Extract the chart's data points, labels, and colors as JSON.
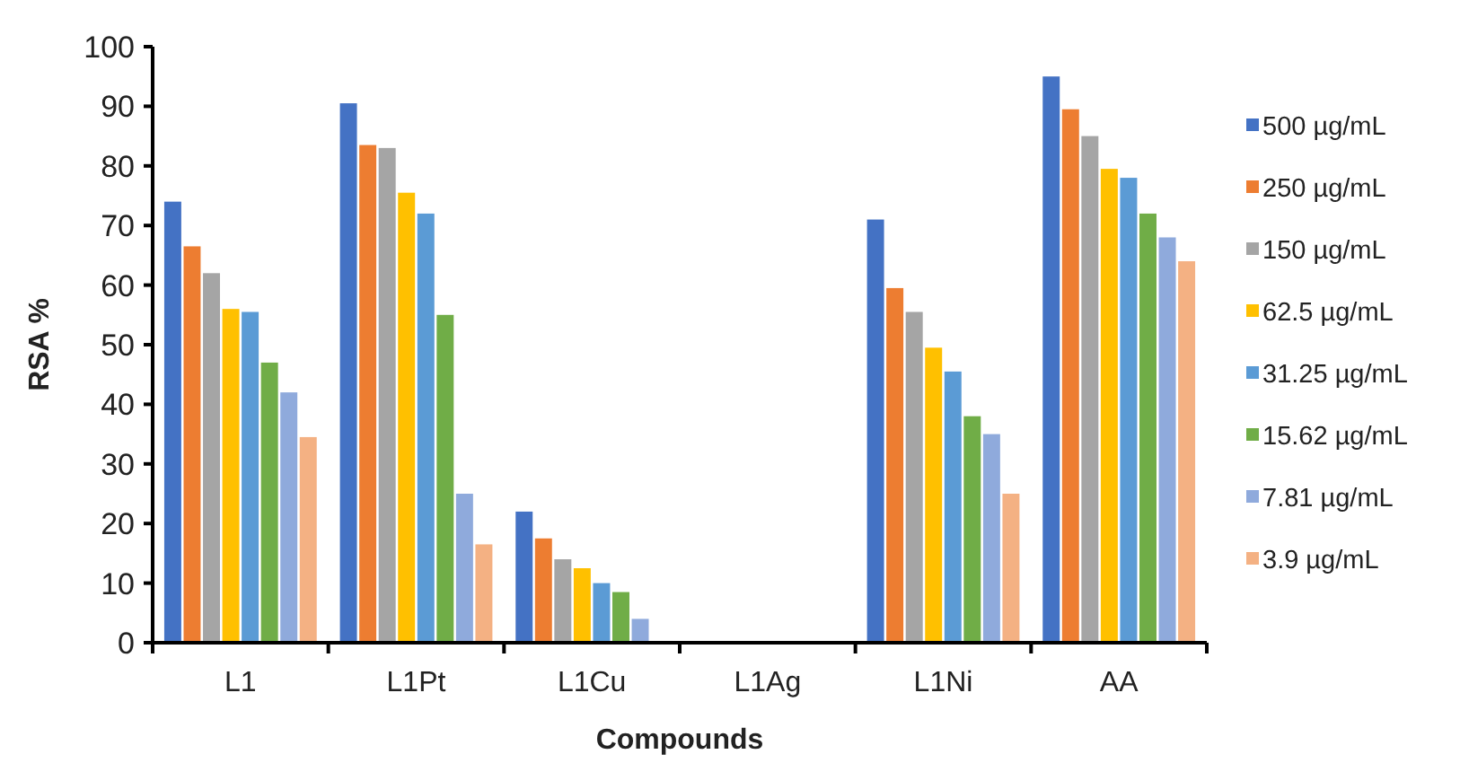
{
  "chart_data": {
    "type": "bar",
    "xlabel": "Compounds",
    "ylabel": "RSA %",
    "categories": [
      "L1",
      "L1Pt",
      "L1Cu",
      "L1Ag",
      "L1Ni",
      "AA"
    ],
    "ylim": [
      0,
      100
    ],
    "yticks": [
      0,
      10,
      20,
      30,
      40,
      50,
      60,
      70,
      80,
      90,
      100
    ],
    "grid": false,
    "legend": "right",
    "series": [
      {
        "name": "500 µg/mL",
        "color": "#4472c4",
        "values": [
          74,
          90.5,
          22,
          0,
          71,
          95
        ]
      },
      {
        "name": "250 µg/mL",
        "color": "#ed7d31",
        "values": [
          66.5,
          83.5,
          17.5,
          0,
          59.5,
          89.5
        ]
      },
      {
        "name": "150 µg/mL",
        "color": "#a5a5a5",
        "values": [
          62,
          83,
          14,
          0,
          55.5,
          85
        ]
      },
      {
        "name": "62.5 µg/mL",
        "color": "#ffc000",
        "values": [
          56,
          75.5,
          12.5,
          0,
          49.5,
          79.5
        ]
      },
      {
        "name": "31.25 µg/mL",
        "color": "#5b9bd5",
        "values": [
          55.5,
          72,
          10,
          0,
          45.5,
          78
        ]
      },
      {
        "name": "15.62 µg/mL",
        "color": "#70ad47",
        "values": [
          47,
          55,
          8.5,
          0,
          38,
          72
        ]
      },
      {
        "name": "7.81 µg/mL",
        "color": "#8faadc",
        "values": [
          42,
          25,
          4,
          0,
          35,
          68
        ]
      },
      {
        "name": "3.9 µg/mL",
        "color": "#f4b183",
        "values": [
          34.5,
          16.5,
          0,
          0,
          25,
          64
        ]
      }
    ]
  }
}
